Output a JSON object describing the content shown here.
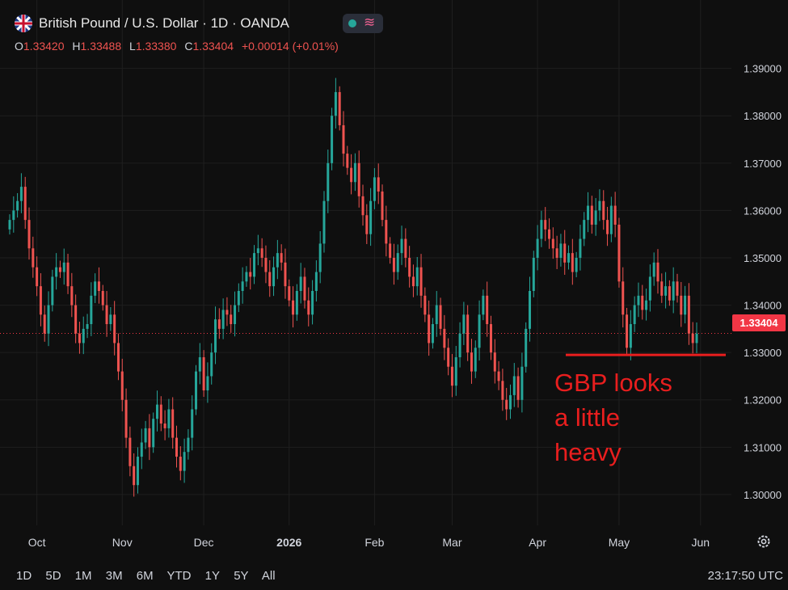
{
  "header": {
    "title": "British Pound / U.S. Dollar · 1D · OANDA",
    "ohlc": [
      {
        "key": "O",
        "value": "1.33420"
      },
      {
        "key": "H",
        "value": "1.33488"
      },
      {
        "key": "L",
        "value": "1.33380"
      },
      {
        "key": "C",
        "value": "1.33404"
      },
      {
        "key": "",
        "value": "+0.00014 (+0.01%)"
      }
    ],
    "flag_icon": "uk-us-flag-icon",
    "indicator_icon": "wave-icon"
  },
  "current_price": "1.33404",
  "annotation": {
    "lines": [
      "GBP looks",
      "a little",
      "heavy"
    ],
    "support_level": 1.3295,
    "color": "#e91e1e"
  },
  "timeframes": [
    "1D",
    "5D",
    "1M",
    "3M",
    "6M",
    "YTD",
    "1Y",
    "5Y",
    "All"
  ],
  "clock": "23:17:50 UTC",
  "colors": {
    "up": "#26a69a",
    "down": "#ef5350",
    "background": "#0f0f0f",
    "grid": "#1f1f1f"
  },
  "chart_data": {
    "type": "candlestick",
    "y_ticks": [
      "1.30000",
      "1.31000",
      "1.32000",
      "1.33000",
      "1.34000",
      "1.35000",
      "1.36000",
      "1.37000",
      "1.38000",
      "1.39000"
    ],
    "ylim": [
      1.2935,
      1.3925
    ],
    "x_labels": [
      {
        "label": "Oct",
        "index": 7
      },
      {
        "label": "Nov",
        "index": 29
      },
      {
        "label": "Dec",
        "index": 50
      },
      {
        "label": "2026",
        "index": 72
      },
      {
        "label": "Feb",
        "index": 94
      },
      {
        "label": "Mar",
        "index": 114
      },
      {
        "label": "Apr",
        "index": 136
      },
      {
        "label": "May",
        "index": 157
      },
      {
        "label": "Jun",
        "index": 178
      }
    ],
    "closes": [
      1.358,
      1.36,
      1.362,
      1.365,
      1.358,
      1.352,
      1.348,
      1.344,
      1.338,
      1.334,
      1.34,
      1.346,
      1.348,
      1.347,
      1.349,
      1.344,
      1.34,
      1.334,
      1.332,
      1.335,
      1.336,
      1.342,
      1.345,
      1.343,
      1.34,
      1.336,
      1.338,
      1.332,
      1.326,
      1.32,
      1.312,
      1.306,
      1.302,
      1.308,
      1.311,
      1.314,
      1.31,
      1.316,
      1.319,
      1.315,
      1.314,
      1.318,
      1.312,
      1.308,
      1.305,
      1.309,
      1.312,
      1.318,
      1.326,
      1.329,
      1.322,
      1.325,
      1.33,
      1.337,
      1.335,
      1.339,
      1.338,
      1.336,
      1.34,
      1.343,
      1.345,
      1.347,
      1.346,
      1.351,
      1.352,
      1.35,
      1.347,
      1.344,
      1.348,
      1.351,
      1.349,
      1.344,
      1.341,
      1.338,
      1.343,
      1.346,
      1.341,
      1.338,
      1.343,
      1.347,
      1.353,
      1.362,
      1.37,
      1.38,
      1.385,
      1.378,
      1.372,
      1.369,
      1.366,
      1.37,
      1.363,
      1.359,
      1.355,
      1.362,
      1.367,
      1.364,
      1.358,
      1.353,
      1.35,
      1.347,
      1.351,
      1.354,
      1.35,
      1.346,
      1.344,
      1.348,
      1.342,
      1.338,
      1.332,
      1.336,
      1.34,
      1.335,
      1.331,
      1.327,
      1.323,
      1.329,
      1.334,
      1.338,
      1.33,
      1.326,
      1.331,
      1.338,
      1.342,
      1.336,
      1.33,
      1.326,
      1.324,
      1.32,
      1.318,
      1.321,
      1.325,
      1.32,
      1.327,
      1.335,
      1.343,
      1.35,
      1.354,
      1.358,
      1.356,
      1.354,
      1.352,
      1.35,
      1.353,
      1.349,
      1.351,
      1.347,
      1.35,
      1.354,
      1.358,
      1.361,
      1.357,
      1.36,
      1.362,
      1.358,
      1.355,
      1.361,
      1.357,
      1.345,
      1.338,
      1.331,
      1.336,
      1.34,
      1.342,
      1.339,
      1.341,
      1.346,
      1.349,
      1.345,
      1.342,
      1.344,
      1.341,
      1.345,
      1.342,
      1.338,
      1.342,
      1.334,
      1.332,
      1.334
    ]
  }
}
